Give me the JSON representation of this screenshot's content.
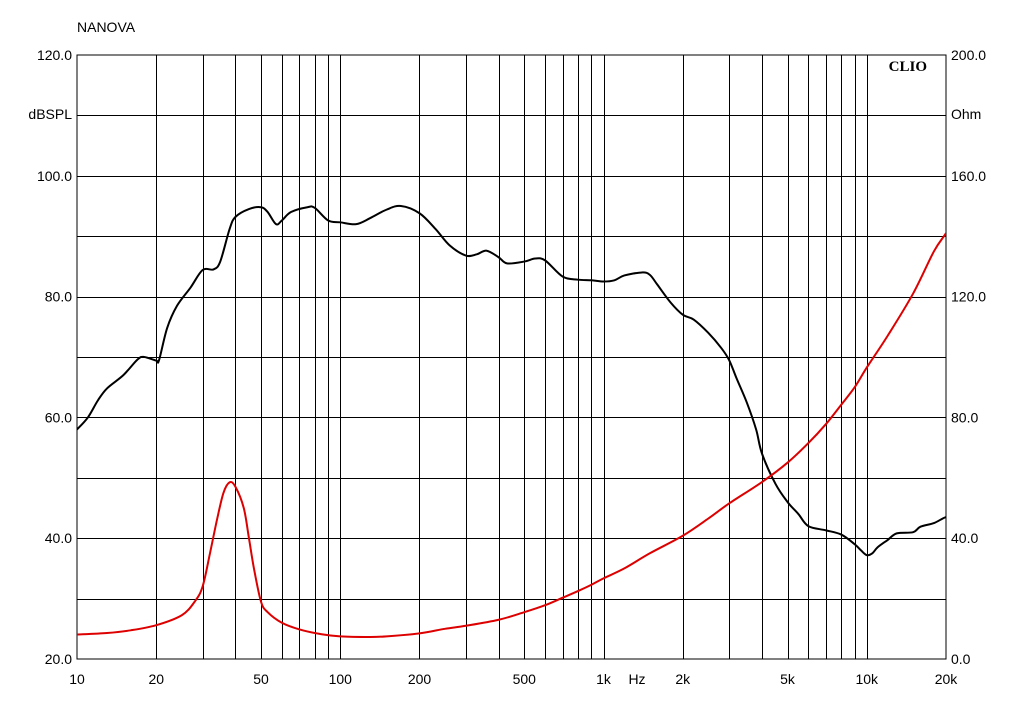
{
  "chart_data": {
    "type": "line",
    "title": "NANOVA",
    "watermark": "CLIO",
    "x_scale": "log",
    "xlim": [
      10,
      20000
    ],
    "x_ticks": [
      {
        "value": 10,
        "label": "10"
      },
      {
        "value": 20,
        "label": "20"
      },
      {
        "value": 50,
        "label": "50"
      },
      {
        "value": 100,
        "label": "100"
      },
      {
        "value": 200,
        "label": "200"
      },
      {
        "value": 500,
        "label": "500"
      },
      {
        "value": 1000,
        "label": "1k"
      },
      {
        "value": 2000,
        "label": "2k"
      },
      {
        "value": 5000,
        "label": "5k"
      },
      {
        "value": 10000,
        "label": "10k"
      },
      {
        "value": 20000,
        "label": "20k"
      }
    ],
    "x_unit": "Hz",
    "left_axis": {
      "unit": "dBSPL",
      "ylim": [
        20,
        120
      ],
      "ticks": [
        {
          "value": 20,
          "label": "20.0"
        },
        {
          "value": 40,
          "label": "40.0"
        },
        {
          "value": 60,
          "label": "60.0"
        },
        {
          "value": 80,
          "label": "80.0"
        },
        {
          "value": 100,
          "label": "100.0"
        },
        {
          "value": 120,
          "label": "120.0"
        }
      ]
    },
    "right_axis": {
      "unit": "Ohm",
      "ylim": [
        0,
        200
      ],
      "ticks": [
        {
          "value": 0,
          "label": "0.0"
        },
        {
          "value": 40,
          "label": "40.0"
        },
        {
          "value": 80,
          "label": "80.0"
        },
        {
          "value": 120,
          "label": "120.0"
        },
        {
          "value": 160,
          "label": "160.0"
        },
        {
          "value": 200,
          "label": "200.0"
        }
      ]
    },
    "grid": true,
    "series": [
      {
        "axis": "left",
        "color": "#000000",
        "points": [
          [
            10,
            58
          ],
          [
            11,
            60
          ],
          [
            12,
            62.8
          ],
          [
            13,
            64.8
          ],
          [
            15,
            67
          ],
          [
            17,
            69.6
          ],
          [
            18,
            70
          ],
          [
            20,
            69.4
          ],
          [
            20.5,
            69.5
          ],
          [
            22,
            74.8
          ],
          [
            24,
            78.5
          ],
          [
            27,
            81.5
          ],
          [
            30,
            84.4
          ],
          [
            33,
            84.5
          ],
          [
            35,
            85.8
          ],
          [
            38,
            91.2
          ],
          [
            40,
            93.2
          ],
          [
            45,
            94.5
          ],
          [
            50,
            94.8
          ],
          [
            53,
            94
          ],
          [
            57,
            92
          ],
          [
            60,
            92.6
          ],
          [
            65,
            94
          ],
          [
            75,
            94.8
          ],
          [
            80,
            94.7
          ],
          [
            90,
            92.6
          ],
          [
            100,
            92.3
          ],
          [
            115,
            92
          ],
          [
            130,
            93
          ],
          [
            150,
            94.4
          ],
          [
            170,
            95
          ],
          [
            200,
            93.8
          ],
          [
            230,
            91.2
          ],
          [
            260,
            88.5
          ],
          [
            300,
            86.8
          ],
          [
            330,
            87
          ],
          [
            360,
            87.6
          ],
          [
            400,
            86.5
          ],
          [
            430,
            85.5
          ],
          [
            500,
            85.8
          ],
          [
            550,
            86.3
          ],
          [
            600,
            86
          ],
          [
            700,
            83.3
          ],
          [
            800,
            82.8
          ],
          [
            900,
            82.7
          ],
          [
            1000,
            82.5
          ],
          [
            1100,
            82.7
          ],
          [
            1200,
            83.5
          ],
          [
            1400,
            84
          ],
          [
            1500,
            83.6
          ],
          [
            1600,
            82
          ],
          [
            1800,
            79
          ],
          [
            2000,
            77
          ],
          [
            2200,
            76.2
          ],
          [
            2500,
            74
          ],
          [
            2800,
            71.5
          ],
          [
            3000,
            69.5
          ],
          [
            3200,
            66.5
          ],
          [
            3500,
            62.5
          ],
          [
            3800,
            58
          ],
          [
            4000,
            54
          ],
          [
            4500,
            49
          ],
          [
            5000,
            46
          ],
          [
            5500,
            44
          ],
          [
            6000,
            42
          ],
          [
            7000,
            41.3
          ],
          [
            8000,
            40.6
          ],
          [
            9000,
            39
          ],
          [
            9500,
            38
          ],
          [
            10000,
            37.2
          ],
          [
            10500,
            37.5
          ],
          [
            11000,
            38.5
          ],
          [
            12000,
            39.7
          ],
          [
            13000,
            40.8
          ],
          [
            15000,
            41
          ],
          [
            16000,
            41.9
          ],
          [
            18000,
            42.5
          ],
          [
            20000,
            43.5
          ],
          [
            22000,
            43.7
          ]
        ]
      },
      {
        "axis": "right",
        "color": "#dd0000",
        "points": [
          [
            10,
            8.1
          ],
          [
            13,
            8.6
          ],
          [
            16,
            9.5
          ],
          [
            20,
            11.2
          ],
          [
            25,
            14.5
          ],
          [
            28,
            19
          ],
          [
            30,
            24
          ],
          [
            32,
            35
          ],
          [
            34,
            46
          ],
          [
            36,
            55
          ],
          [
            38,
            58.5
          ],
          [
            40,
            57
          ],
          [
            43,
            50
          ],
          [
            45,
            40
          ],
          [
            47,
            30
          ],
          [
            50,
            19
          ],
          [
            53,
            15.5
          ],
          [
            60,
            12
          ],
          [
            70,
            9.8
          ],
          [
            85,
            8.2
          ],
          [
            100,
            7.5
          ],
          [
            130,
            7.3
          ],
          [
            150,
            7.5
          ],
          [
            200,
            8.5
          ],
          [
            250,
            10
          ],
          [
            300,
            11
          ],
          [
            400,
            13
          ],
          [
            500,
            15.5
          ],
          [
            600,
            17.8
          ],
          [
            700,
            20.3
          ],
          [
            800,
            22.5
          ],
          [
            900,
            24.6
          ],
          [
            1000,
            26.7
          ],
          [
            1200,
            30
          ],
          [
            1500,
            35
          ],
          [
            2000,
            40.8
          ],
          [
            2500,
            46.5
          ],
          [
            3000,
            51.5
          ],
          [
            4000,
            58.6
          ],
          [
            5000,
            65
          ],
          [
            6000,
            71.5
          ],
          [
            7000,
            77.8
          ],
          [
            8000,
            84.2
          ],
          [
            9000,
            90
          ],
          [
            10000,
            96.5
          ],
          [
            12000,
            107
          ],
          [
            15000,
            121
          ],
          [
            18000,
            135
          ],
          [
            20000,
            141
          ],
          [
            22000,
            147
          ]
        ]
      }
    ]
  }
}
